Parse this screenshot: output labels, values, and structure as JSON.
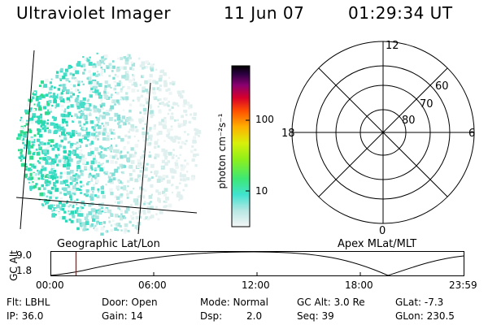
{
  "header": {
    "title": "Ultraviolet Imager",
    "date": "11 Jun 07",
    "time": "01:29:34 UT"
  },
  "colorbar": {
    "unit_label": "photon cm⁻²s⁻¹",
    "tick_100": "100",
    "tick_10": "10"
  },
  "polar": {
    "top": "12",
    "bottom": "0",
    "left": "18",
    "right": "6",
    "lat_60": "60",
    "lat_70": "70",
    "lat_80": "80"
  },
  "projection_labels": {
    "left": "Geographic Lat/Lon",
    "right": "Apex MLat/MLT"
  },
  "altitude_plot": {
    "ylabel": "GC Alt",
    "y_high": "9.0",
    "y_low": "1.8",
    "x_ticks": [
      "00:00",
      "06:00",
      "12:00",
      "18:00",
      "23:59"
    ],
    "current_time_fraction": 0.062
  },
  "info": {
    "row1": {
      "filter": "Flt: LBHL",
      "door": "Door: Open",
      "mode": "Mode: Normal",
      "gc_alt": "GC Alt: 3.0 Re",
      "glat": "GLat:  -7.3"
    },
    "row2": {
      "ip": "IP: 36.0",
      "gain": "Gain: 14",
      "dsp_label": "Dsp:",
      "dsp_value": "2.0",
      "seq": "Seq: 39",
      "glon": "GLon: 230.5"
    }
  }
}
